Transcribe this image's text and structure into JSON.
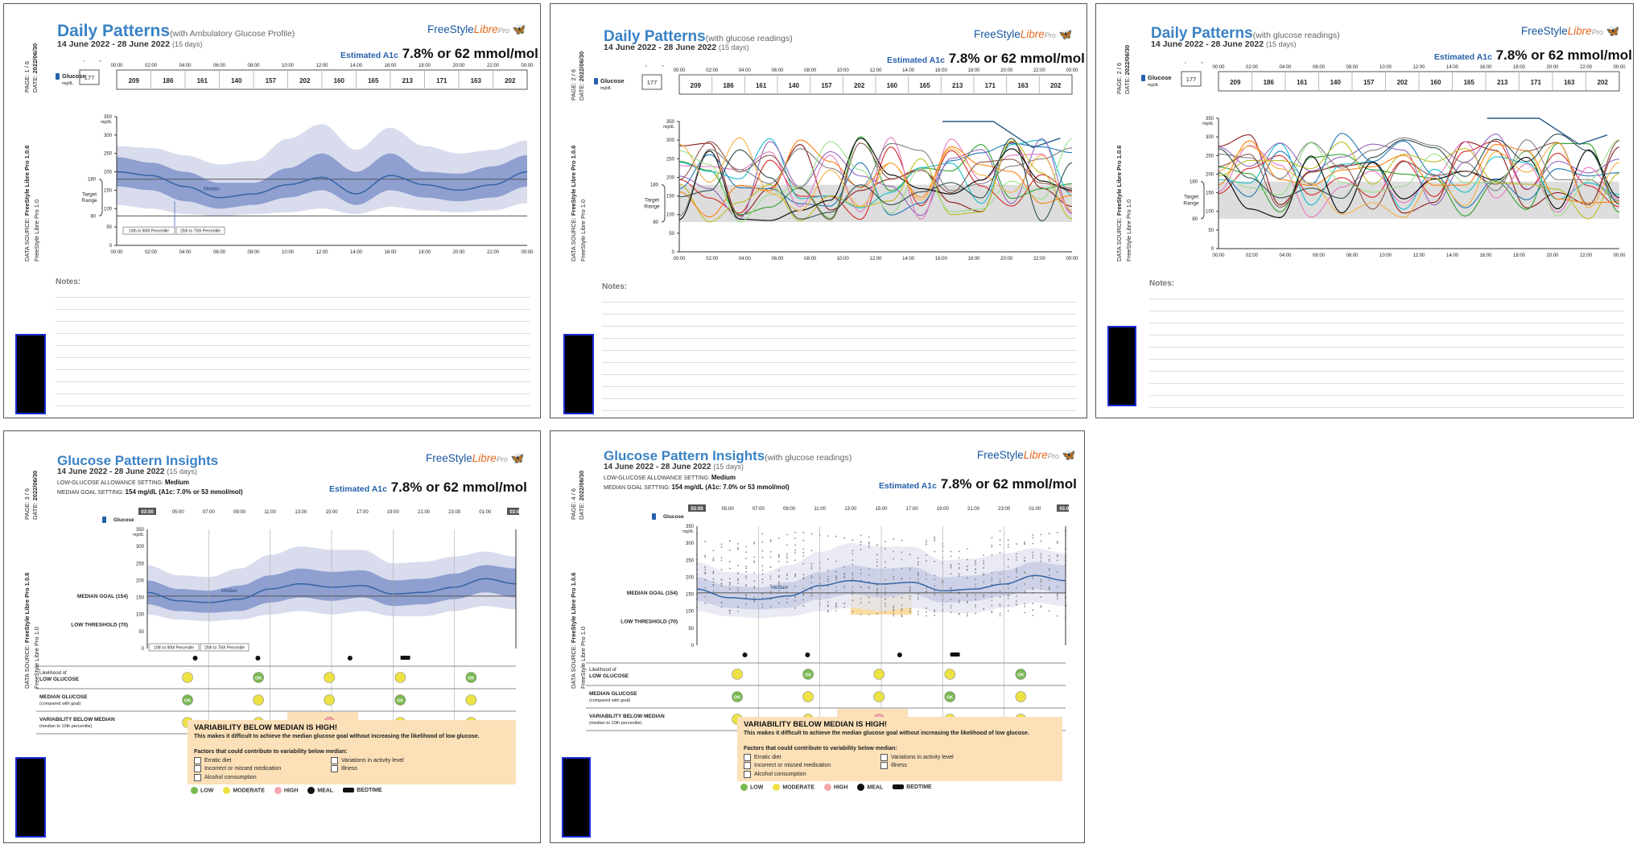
{
  "brand": {
    "free": "FreeStyle",
    "libre": "Libre",
    "pro": "Pro"
  },
  "common": {
    "dates": "14 June 2022 - 28 June 2022",
    "days": "(15 days)",
    "a1c_label": "Estimated A1c",
    "a1c_value": "7.8% or 62 mmol/mol",
    "date_label": "DATE:",
    "date_value": "2022/06/30",
    "source_label": "DATA SOURCE:",
    "source_value": "FreeStyle Libre Pro 1.0.6",
    "device_line": "FreeStyle Libre Pro 1.0",
    "notes_label": "Notes:",
    "glucose_label": "Glucose",
    "unit": "mg/dL",
    "daily_avg_label": "Daily Average",
    "daily_avg_value": "177",
    "hourly_avgs": [
      "209",
      "186",
      "161",
      "140",
      "157",
      "202",
      "160",
      "165",
      "213",
      "171",
      "163",
      "202"
    ],
    "time_ticks": [
      "00:00",
      "02:00",
      "04:00",
      "06:00",
      "08:00",
      "10:00",
      "12:00",
      "14:00",
      "16:00",
      "18:00",
      "20:00",
      "22:00",
      "00:00"
    ],
    "insight_ticks": [
      "03:00",
      "05:00",
      "07:00",
      "09:00",
      "11:00",
      "13:00",
      "15:00",
      "17:00",
      "19:00",
      "21:00",
      "23:00",
      "01:00",
      "03:00"
    ],
    "y_ticks": [
      "350",
      "300",
      "250",
      "200",
      "150",
      "100",
      "50",
      "0"
    ],
    "target_label": "Target Range",
    "target_hi": "180",
    "target_lo": "80",
    "median_label": "Median",
    "pct_outer": "10th to 90th Percentile",
    "pct_inner": "25th to 75th Percentile",
    "median_goal": "MEDIAN GOAL (154)",
    "low_threshold": "LOW THRESHOLD (70)",
    "low_allow_label": "LOW-GLUCOSE ALLOWANCE SETTING:",
    "low_allow_value": "Medium",
    "goal_setting_label": "MEDIAN GOAL SETTING:",
    "goal_setting_value": "154 mg/dL (A1c: 7.0% or 53 mmol/mol)",
    "row_low": "Likelihood of LOW GLUCOSE",
    "row_median": "MEDIAN GLUCOSE",
    "row_median_sub": "(compared with goal)",
    "row_var": "VARIABILITY BELOW MEDIAN",
    "row_var_sub": "(median to 10th percentile)",
    "ok": "OK",
    "alert_title": "VARIABILITY BELOW MEDIAN IS HIGH!",
    "alert_sub": "This makes it difficult to achieve the median glucose goal without increasing the likelihood of low glucose.",
    "factors_title": "Factors that could contribute to variability below median:",
    "factors": [
      "Erratic diet",
      "Variations in activity level",
      "Incorrect or missed medication",
      "Illness",
      "Alcohol consumption"
    ],
    "legend": [
      "LOW",
      "MODERATE",
      "HIGH",
      "MEAL",
      "BEDTIME"
    ]
  },
  "pages": [
    {
      "title": "Daily Patterns",
      "subtitle": "(with Ambulatory Glucose Profile)",
      "page": "PAGE: 1 / 6"
    },
    {
      "title": "Daily Patterns",
      "subtitle": "(with glucose readings)",
      "page": "PAGE: 2 / 6"
    },
    {
      "title": "Daily Patterns",
      "subtitle": "(with glucose readings)",
      "page": "PAGE: 2 / 6"
    },
    {
      "title": "Glucose Pattern Insights",
      "subtitle": "",
      "page": "PAGE: 3 / 6"
    },
    {
      "title": "Glucose Pattern Insights",
      "subtitle": "(with glucose readings)",
      "page": "PAGE: 4 / 6"
    }
  ],
  "chart_data": [
    {
      "type": "area",
      "title": "Daily Patterns",
      "ylabel": "mg/dL",
      "ylim": [
        0,
        350
      ],
      "x": [
        "00:00",
        "02:00",
        "04:00",
        "06:00",
        "08:00",
        "10:00",
        "12:00",
        "14:00",
        "16:00",
        "18:00",
        "20:00",
        "22:00",
        "00:00"
      ],
      "series": [
        {
          "name": "Median",
          "values": [
            200,
            190,
            160,
            130,
            140,
            165,
            185,
            140,
            190,
            165,
            150,
            165,
            200
          ]
        },
        {
          "name": "25th to 75th Percentile",
          "low": [
            160,
            150,
            120,
            100,
            110,
            130,
            150,
            110,
            150,
            130,
            120,
            130,
            160
          ],
          "high": [
            240,
            225,
            200,
            170,
            170,
            210,
            250,
            200,
            250,
            200,
            195,
            215,
            245
          ]
        },
        {
          "name": "10th to 90th Percentile",
          "low": [
            110,
            100,
            85,
            80,
            85,
            90,
            100,
            85,
            105,
            95,
            90,
            95,
            115
          ],
          "high": [
            270,
            265,
            245,
            220,
            230,
            290,
            330,
            260,
            320,
            270,
            250,
            260,
            285
          ]
        }
      ]
    },
    {
      "type": "line",
      "title": "Daily Patterns",
      "ylabel": "mg/dL",
      "ylim": [
        0,
        350
      ],
      "x_range": [
        "00:00",
        "00:00"
      ],
      "series_count": 15
    },
    {
      "type": "area",
      "title": "Glucose Pattern Insights",
      "ylabel": "mg/dL",
      "ylim": [
        0,
        350
      ],
      "x": [
        "03:00",
        "05:00",
        "07:00",
        "09:00",
        "11:00",
        "13:00",
        "15:00",
        "17:00",
        "19:00",
        "21:00",
        "23:00",
        "01:00",
        "03:00"
      ],
      "series": [
        {
          "name": "Median",
          "values": [
            165,
            140,
            135,
            145,
            175,
            190,
            180,
            185,
            160,
            165,
            180,
            205,
            190
          ]
        },
        {
          "name": "25th to 75th Percentile",
          "low": [
            130,
            110,
            105,
            110,
            135,
            150,
            140,
            150,
            125,
            130,
            145,
            165,
            150
          ],
          "high": [
            200,
            175,
            170,
            185,
            215,
            235,
            225,
            230,
            200,
            205,
            220,
            245,
            235
          ]
        },
        {
          "name": "10th to 90th Percentile",
          "low": [
            100,
            85,
            80,
            85,
            100,
            110,
            100,
            110,
            95,
            95,
            110,
            125,
            115
          ],
          "high": [
            245,
            215,
            210,
            235,
            275,
            300,
            290,
            290,
            250,
            255,
            270,
            285,
            270
          ]
        }
      ]
    }
  ],
  "insights": {
    "low": [
      "yellow",
      "green",
      "yellow",
      "yellow",
      "green"
    ],
    "median": [
      "green",
      "yellow",
      "yellow",
      "green",
      "yellow"
    ],
    "var": [
      "yellow",
      "yellow",
      "red",
      "yellow",
      "yellow"
    ]
  },
  "colors": {
    "title": "#3a82c4",
    "band_outer": "#d9dced",
    "band_inner": "#8e9fd0",
    "median": "#3465a4",
    "target": "#ddd",
    "alert": "#fbe0b8",
    "yellow": "#ede244",
    "green": "#79b950",
    "red": "#f3a7ad"
  }
}
